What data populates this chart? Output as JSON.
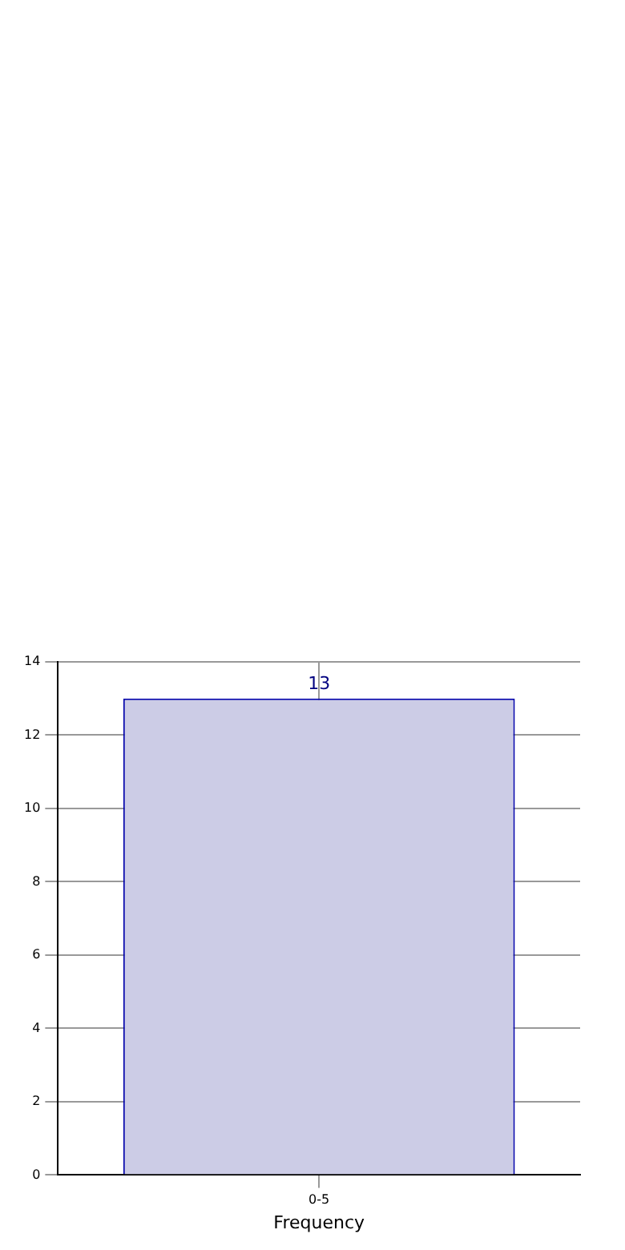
{
  "chart_data": {
    "type": "bar",
    "xlabel": "Frequency",
    "categories": [
      "0-5"
    ],
    "values": [
      13
    ],
    "color": "#ccccE6",
    "ylim": [
      0,
      14
    ],
    "yticks": [
      0,
      2,
      4,
      6,
      8,
      10,
      12,
      14
    ],
    "grid": true,
    "data_labels": true,
    "legend": false
  }
}
